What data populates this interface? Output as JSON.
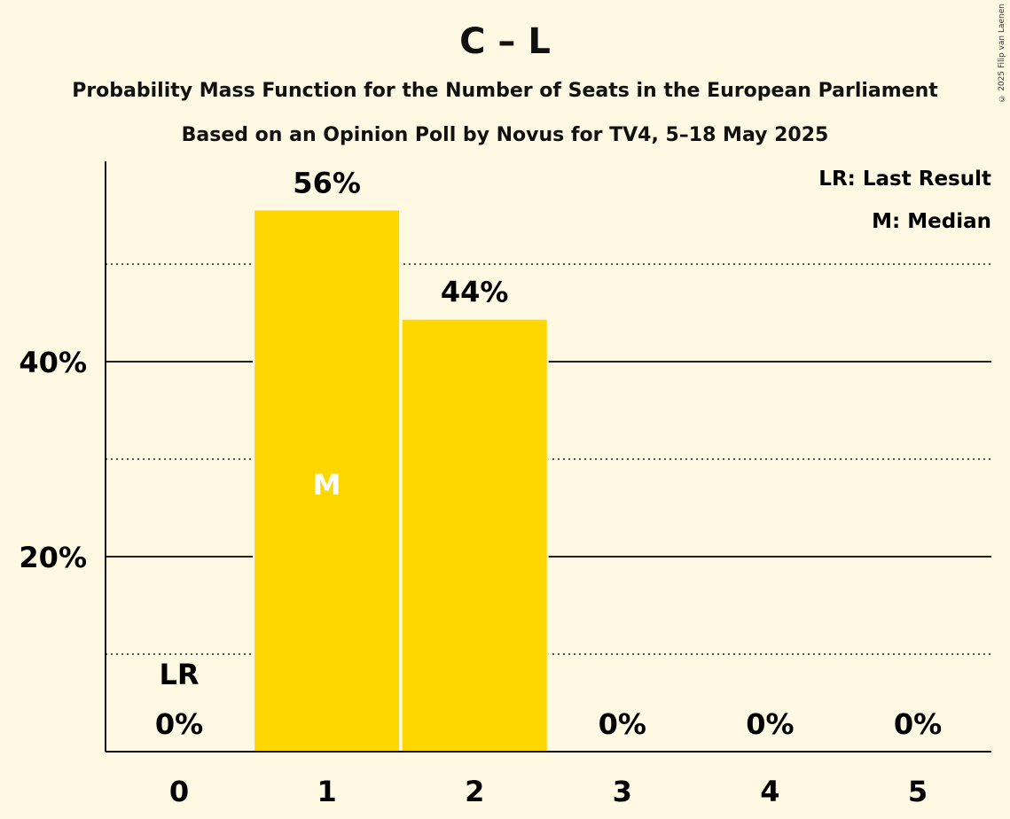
{
  "title": "C – L",
  "subtitle": "Probability Mass Function for the Number of Seats in the European Parliament",
  "subtitle2": "Based on an Opinion Poll by Novus for TV4, 5–18 May 2025",
  "copyright": "© 2025 Filip van Laenen",
  "legend": {
    "last_result": "LR: Last Result",
    "median": "M: Median"
  },
  "chart_data": {
    "type": "bar",
    "categories": [
      "0",
      "1",
      "2",
      "3",
      "4",
      "5"
    ],
    "values": [
      0,
      55.5,
      44.3,
      0,
      0,
      0
    ],
    "data_labels": [
      "0%",
      "56%",
      "44%",
      "0%",
      "0%",
      "0%"
    ],
    "ylim": [
      0,
      60
    ],
    "y_ticks": [
      20,
      40
    ],
    "y_tick_labels": [
      "20%",
      "40%"
    ],
    "minor_gridlines": [
      10,
      30,
      50
    ],
    "last_result_category": "0",
    "last_result_marker": "LR",
    "median_category": "1",
    "median_marker": "M",
    "bar_color": "#ffd700",
    "grid": true,
    "legend_position": "top-right"
  }
}
